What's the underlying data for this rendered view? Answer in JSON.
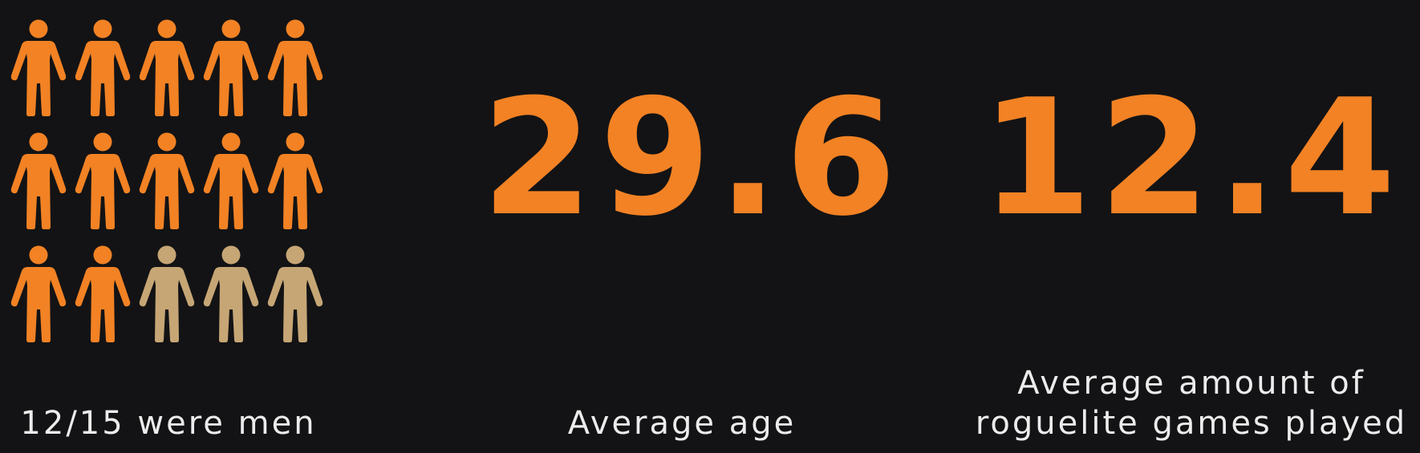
{
  "colors": {
    "background": "#131315",
    "accent": "#f28224",
    "muted": "#c6a675",
    "text": "#ececec"
  },
  "stat_men": {
    "icon": "person-icon",
    "total": 15,
    "highlighted": 12,
    "caption": "12/15 were men"
  },
  "stat_age": {
    "value": "29.6",
    "caption": "Average age"
  },
  "stat_games": {
    "value": "12.4",
    "caption": "Average amount of\nroguelite games played"
  }
}
